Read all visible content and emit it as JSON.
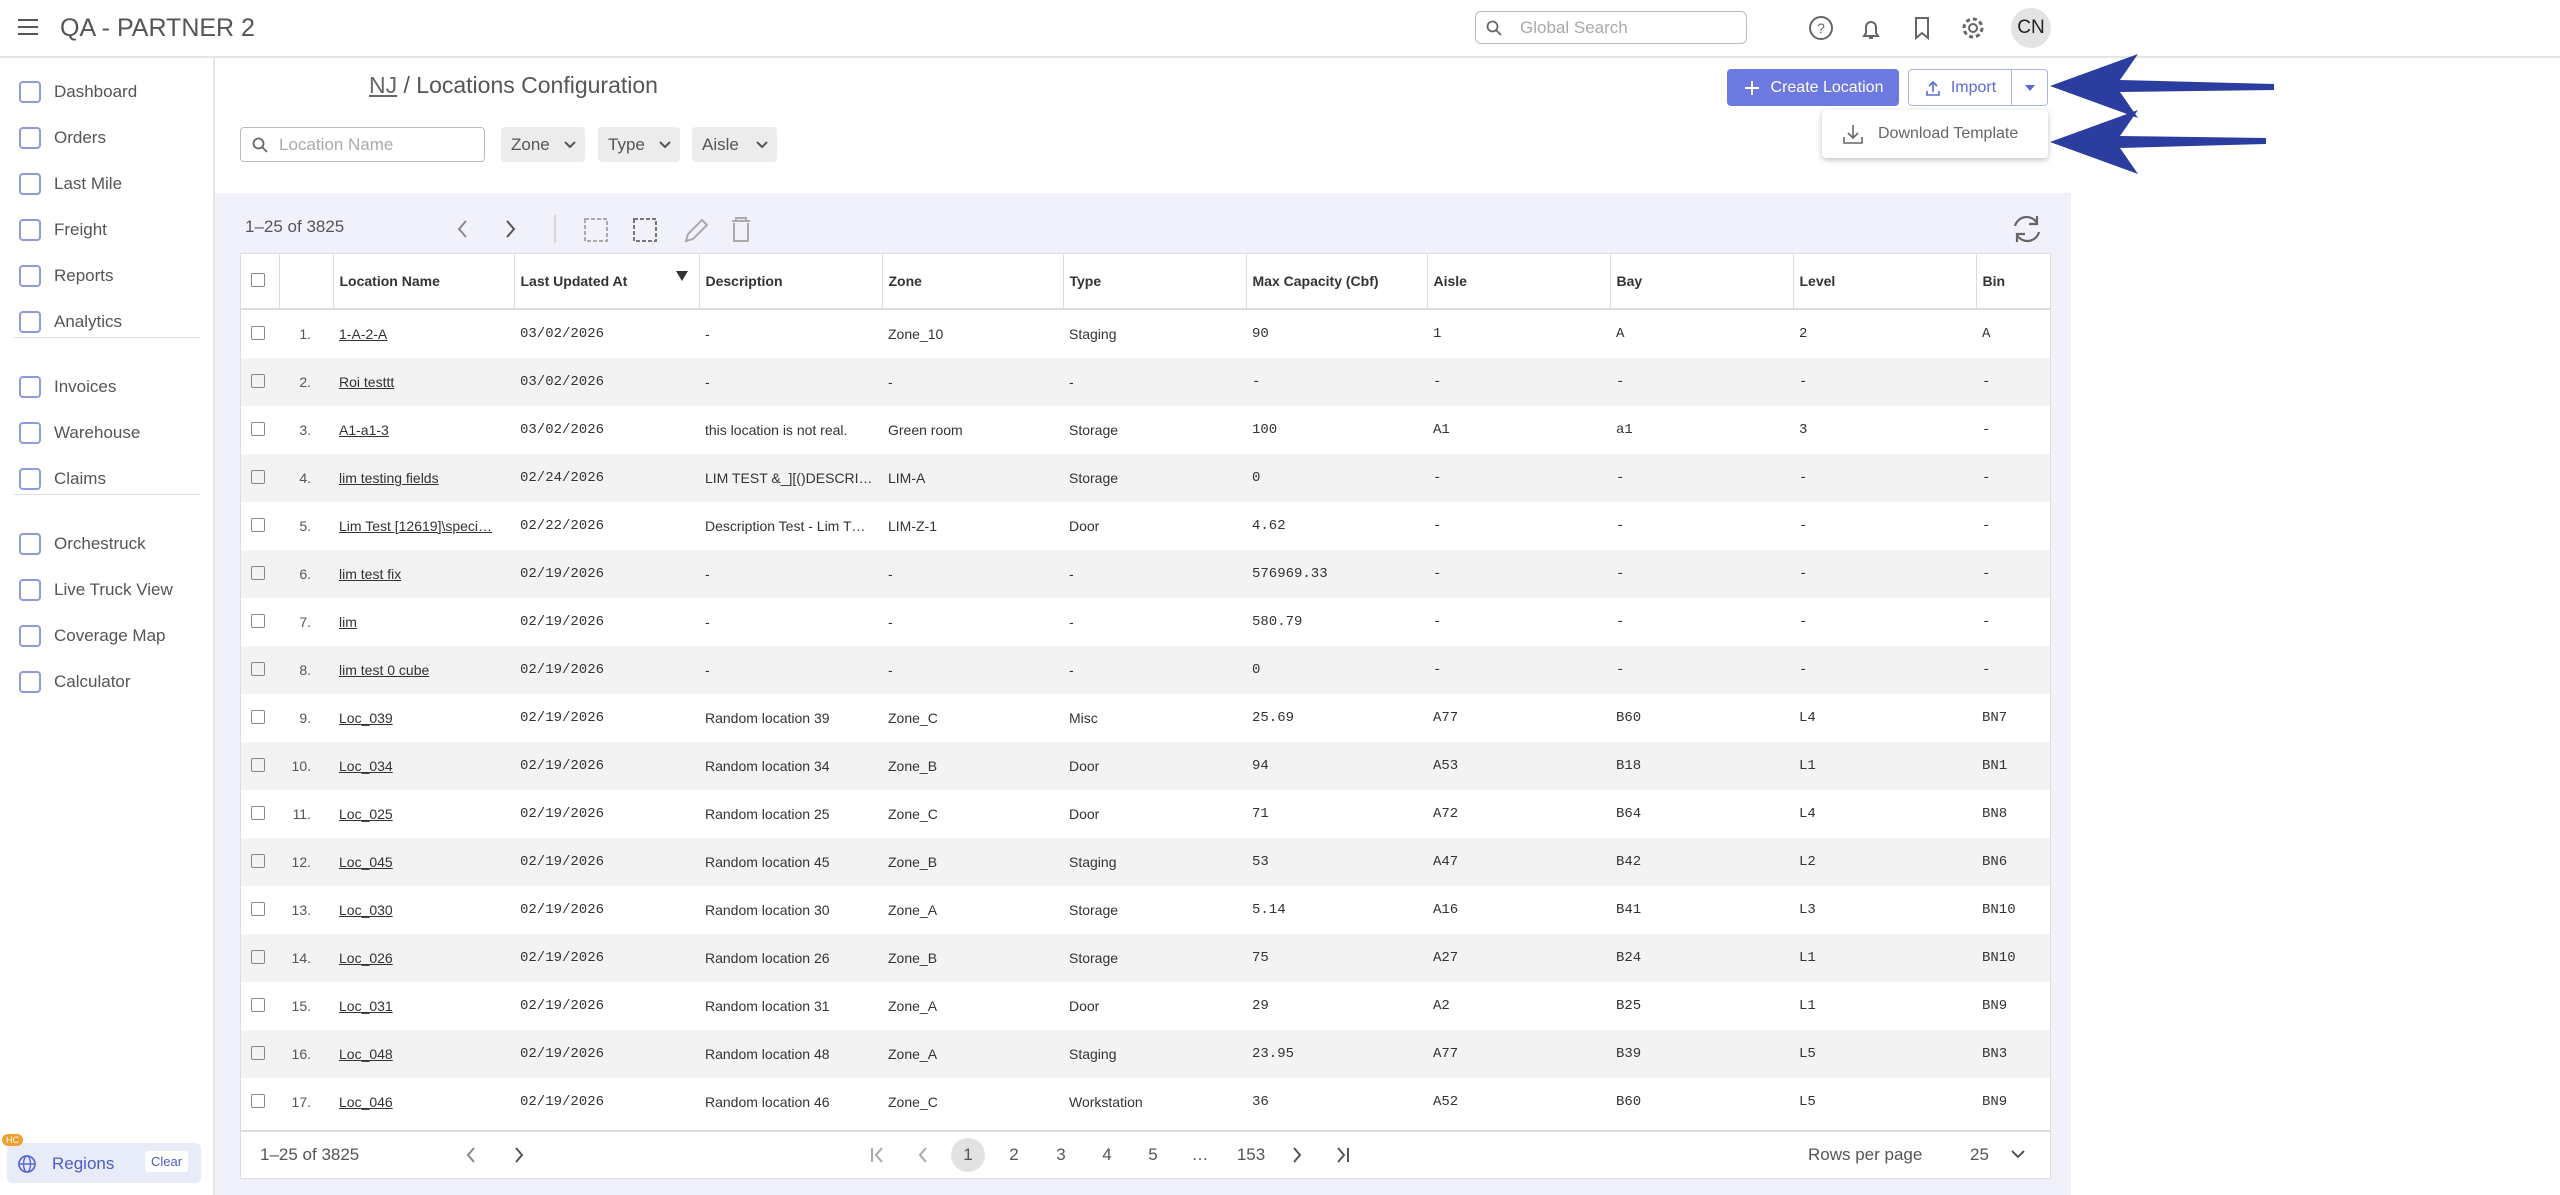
{
  "header": {
    "app_title": "QA - PARTNER 2",
    "search_placeholder": "Global Search",
    "avatar": "CN"
  },
  "sidebar": {
    "groups": [
      [
        "Dashboard",
        "Orders",
        "Last Mile",
        "Freight",
        "Reports",
        "Analytics"
      ],
      [
        "Invoices",
        "Warehouse",
        "Claims"
      ],
      [
        "Orchestruck",
        "Live Truck View",
        "Coverage Map",
        "Calculator"
      ]
    ],
    "badge": "HC",
    "regions": "Regions",
    "clear": "Clear"
  },
  "breadcrumb": {
    "parent": "NJ",
    "separator": "/",
    "title": "Locations Configuration"
  },
  "actions": {
    "create": "Create Location",
    "import": "Import",
    "menu_item": "Download Template"
  },
  "filters": {
    "search_placeholder": "Location Name",
    "dropdowns": [
      "Zone",
      "Type",
      "Aisle"
    ]
  },
  "toolbar": {
    "range": "1–25 of 3825"
  },
  "table": {
    "columns": [
      "Location Name",
      "Last Updated At",
      "Description",
      "Zone",
      "Type",
      "Max Capacity (Cbf)",
      "Aisle",
      "Bay",
      "Level",
      "Bin"
    ],
    "rows": [
      [
        "1.",
        "1-A-2-A",
        "03/02/2026",
        "-",
        "Zone_10",
        "Staging",
        "90",
        "1",
        "A",
        "2",
        "A"
      ],
      [
        "2.",
        "Roi testtt",
        "03/02/2026",
        "-",
        "-",
        "-",
        "-",
        "-",
        "-",
        "-",
        "-"
      ],
      [
        "3.",
        "A1-a1-3",
        "03/02/2026",
        "this location is not real.",
        "Green room",
        "Storage",
        "100",
        "A1",
        "a1",
        "3",
        "-"
      ],
      [
        "4.",
        "lim testing fields",
        "02/24/2026",
        "LIM TEST &_][()DESCRI…",
        "LIM-A",
        "Storage",
        "0",
        "-",
        "-",
        "-",
        "-"
      ],
      [
        "5.",
        "Lim Test [12619]\\speci…",
        "02/22/2026",
        "Description Test - Lim T…",
        "LIM-Z-1",
        "Door",
        "4.62",
        "-",
        "-",
        "-",
        "-"
      ],
      [
        "6.",
        "lim test fix",
        "02/19/2026",
        "-",
        "-",
        "-",
        "576969.33",
        "-",
        "-",
        "-",
        "-"
      ],
      [
        "7.",
        "lim",
        "02/19/2026",
        "-",
        "-",
        "-",
        "580.79",
        "-",
        "-",
        "-",
        "-"
      ],
      [
        "8.",
        "lim test 0 cube",
        "02/19/2026",
        "-",
        "-",
        "-",
        "0",
        "-",
        "-",
        "-",
        "-"
      ],
      [
        "9.",
        "Loc_039",
        "02/19/2026",
        "Random location 39",
        "Zone_C",
        "Misc",
        "25.69",
        "A77",
        "B60",
        "L4",
        "BN7"
      ],
      [
        "10.",
        "Loc_034",
        "02/19/2026",
        "Random location 34",
        "Zone_B",
        "Door",
        "94",
        "A53",
        "B18",
        "L1",
        "BN1"
      ],
      [
        "11.",
        "Loc_025",
        "02/19/2026",
        "Random location 25",
        "Zone_C",
        "Door",
        "71",
        "A72",
        "B64",
        "L4",
        "BN8"
      ],
      [
        "12.",
        "Loc_045",
        "02/19/2026",
        "Random location 45",
        "Zone_B",
        "Staging",
        "53",
        "A47",
        "B42",
        "L2",
        "BN6"
      ],
      [
        "13.",
        "Loc_030",
        "02/19/2026",
        "Random location 30",
        "Zone_A",
        "Storage",
        "5.14",
        "A16",
        "B41",
        "L3",
        "BN10"
      ],
      [
        "14.",
        "Loc_026",
        "02/19/2026",
        "Random location 26",
        "Zone_B",
        "Storage",
        "75",
        "A27",
        "B24",
        "L1",
        "BN10"
      ],
      [
        "15.",
        "Loc_031",
        "02/19/2026",
        "Random location 31",
        "Zone_A",
        "Door",
        "29",
        "A2",
        "B25",
        "L1",
        "BN9"
      ],
      [
        "16.",
        "Loc_048",
        "02/19/2026",
        "Random location 48",
        "Zone_A",
        "Staging",
        "23.95",
        "A77",
        "B39",
        "L5",
        "BN3"
      ],
      [
        "17.",
        "Loc_046",
        "02/19/2026",
        "Random location 46",
        "Zone_C",
        "Workstation",
        "36",
        "A52",
        "B60",
        "L5",
        "BN9"
      ]
    ]
  },
  "footer": {
    "range": "1–25 of 3825",
    "pages": [
      "1",
      "2",
      "3",
      "4",
      "5",
      "…",
      "153"
    ],
    "rows_per_page_label": "Rows per page",
    "rows_per_page": "25"
  }
}
